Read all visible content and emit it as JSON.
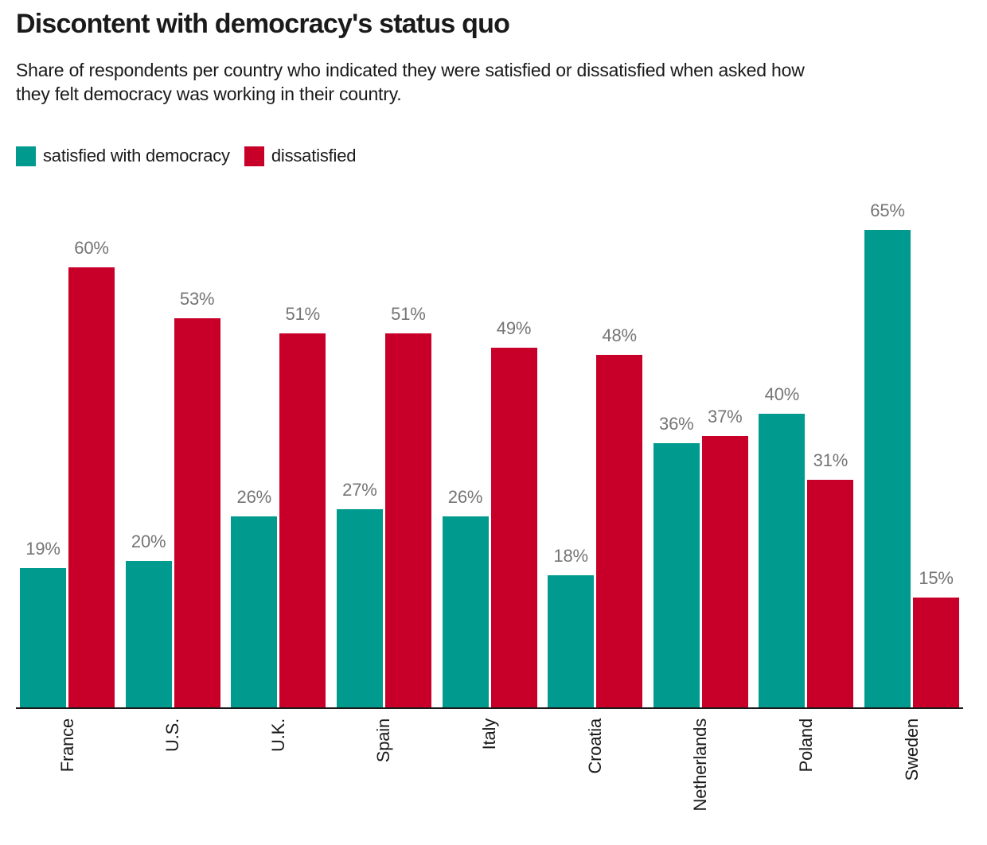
{
  "header": {
    "title": "Discontent with democracy's status quo",
    "subtitle": "Share of respondents per country who indicated they were satisfied or dissatisfied when asked how they felt democracy was working in their country.",
    "subtitle_lines": [
      "Share of respondents per country who indicated they were satisfied or dissatisfied when asked how",
      "they felt democracy was working in their country."
    ]
  },
  "legend": {
    "items": [
      {
        "label": "satisfied with democracy",
        "color": "#009a8f"
      },
      {
        "label": "dissatisfied",
        "color": "#c80029"
      }
    ]
  },
  "colors": {
    "satisfied": "#009a8f",
    "dissatisfied": "#c80029",
    "value_label": "#757575",
    "text": "#1a1a1a",
    "axis": "#1a1a1a",
    "background": "#ffffff"
  },
  "chart_data": {
    "type": "bar",
    "categories": [
      "France",
      "U.S.",
      "U.K.",
      "Spain",
      "Italy",
      "Croatia",
      "Netherlands",
      "Poland",
      "Sweden"
    ],
    "series": [
      {
        "name": "satisfied with democracy",
        "color": "#009a8f",
        "values": [
          19,
          20,
          26,
          27,
          26,
          18,
          36,
          40,
          65
        ]
      },
      {
        "name": "dissatisfied",
        "color": "#c80029",
        "values": [
          60,
          53,
          51,
          51,
          49,
          48,
          37,
          31,
          15
        ]
      }
    ],
    "title": "Discontent with democracy's status quo",
    "xlabel": "",
    "ylabel": "",
    "ylim": [
      0,
      65
    ],
    "value_suffix": "%",
    "grid": false,
    "bar_labels": true,
    "legend_position": "top-left",
    "x_tick_rotation": 90
  }
}
